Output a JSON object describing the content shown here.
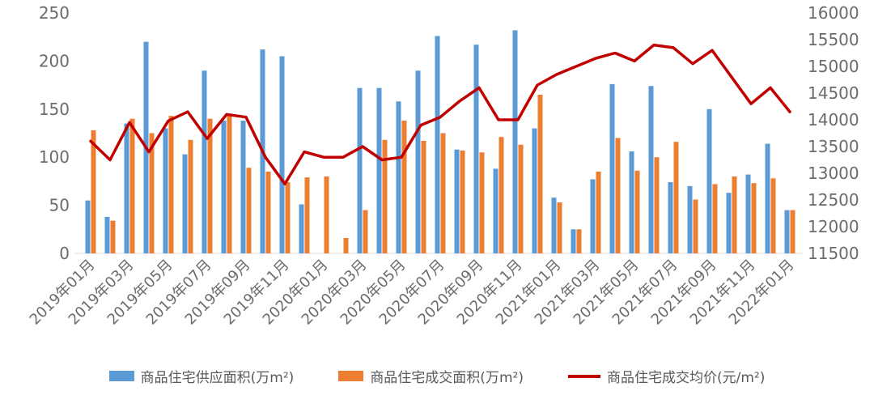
{
  "chart_data": {
    "type": "bar+line",
    "x": [
      "2019年01月",
      "2019年02月",
      "2019年03月",
      "2019年04月",
      "2019年05月",
      "2019年06月",
      "2019年07月",
      "2019年08月",
      "2019年09月",
      "2019年10月",
      "2019年11月",
      "2019年12月",
      "2020年01月",
      "2020年02月",
      "2020年03月",
      "2020年04月",
      "2020年05月",
      "2020年06月",
      "2020年07月",
      "2020年08月",
      "2020年09月",
      "2020年10月",
      "2020年11月",
      "2020年12月",
      "2021年01月",
      "2021年02月",
      "2021年03月",
      "2021年04月",
      "2021年05月",
      "2021年06月",
      "2021年07月",
      "2021年08月",
      "2021年09月",
      "2021年10月",
      "2021年11月",
      "2021年12月",
      "2022年01月"
    ],
    "x_tick_step": 2,
    "series": [
      {
        "name": "商品住宅供应面积(万m²)",
        "type": "bar",
        "axis": "left",
        "color": "#5B9BD5",
        "values": [
          55,
          38,
          135,
          220,
          130,
          103,
          190,
          138,
          138,
          212,
          205,
          51,
          0,
          0,
          172,
          172,
          158,
          190,
          226,
          108,
          217,
          88,
          232,
          130,
          58,
          25,
          77,
          176,
          106,
          174,
          74,
          70,
          150,
          63,
          82,
          114,
          45
        ]
      },
      {
        "name": "商品住宅成交面积(万m²)",
        "type": "bar",
        "axis": "left",
        "color": "#ED7D31",
        "values": [
          128,
          34,
          140,
          125,
          143,
          118,
          140,
          145,
          89,
          85,
          74,
          79,
          80,
          16,
          45,
          118,
          138,
          117,
          125,
          107,
          105,
          121,
          113,
          165,
          53,
          25,
          85,
          120,
          86,
          100,
          116,
          56,
          72,
          80,
          73,
          78,
          45
        ]
      },
      {
        "name": "商品住宅成交均价(元/m²)",
        "type": "line",
        "axis": "right",
        "color": "#C00000",
        "values": [
          13600,
          13250,
          13950,
          13400,
          13980,
          14150,
          13650,
          14100,
          14050,
          13300,
          12800,
          13400,
          13300,
          13300,
          13500,
          13250,
          13300,
          13900,
          14050,
          14350,
          14600,
          14000,
          14000,
          14650,
          14850,
          15000,
          15150,
          15250,
          15100,
          15400,
          15350,
          15050,
          15300,
          14800,
          14300,
          14600,
          14150
        ]
      }
    ],
    "left_axis": {
      "min": 0,
      "max": 250,
      "ticks": [
        0,
        50,
        100,
        150,
        200,
        250
      ]
    },
    "right_axis": {
      "min": 11500,
      "max": 16000,
      "ticks": [
        11500,
        12000,
        12500,
        13000,
        13500,
        14000,
        14500,
        15000,
        15500,
        16000
      ]
    },
    "grid": false,
    "legend_position": "bottom",
    "title": "",
    "xlabel": "",
    "ylabel": ""
  }
}
